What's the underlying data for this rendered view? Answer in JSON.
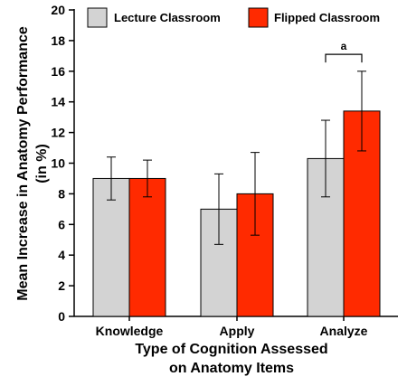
{
  "chart_data": {
    "type": "bar",
    "categories": [
      "Knowledge",
      "Apply",
      "Analyze"
    ],
    "series": [
      {
        "name": "Lecture Classroom",
        "color": "#d3d3d3",
        "values": [
          9.0,
          7.0,
          10.3
        ],
        "error": [
          1.4,
          2.3,
          2.5
        ]
      },
      {
        "name": "Flipped Classroom",
        "color": "#ff2a00",
        "values": [
          9.0,
          8.0,
          13.4
        ],
        "error": [
          1.2,
          2.7,
          2.6
        ]
      }
    ],
    "ylabel_line1": "Mean Increase in Anatomy Performance",
    "ylabel_line2": "(in %)",
    "xlabel_line1": "Type of Cognition Assessed",
    "xlabel_line2": "on Anatomy Items",
    "ylim": [
      0,
      20
    ],
    "yticks": [
      0,
      2,
      4,
      6,
      8,
      10,
      12,
      14,
      16,
      18,
      20
    ],
    "grid": false,
    "legend_position": "top",
    "annotations": [
      {
        "text": "a",
        "category": "Analyze",
        "value": 17.1
      }
    ]
  }
}
